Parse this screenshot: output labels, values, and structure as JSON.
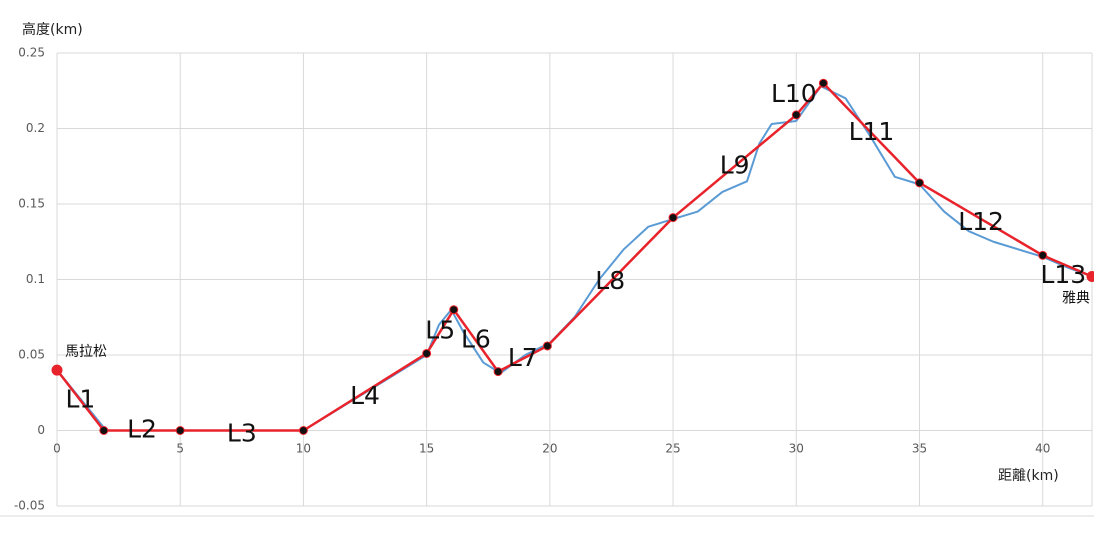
{
  "chart_data": {
    "type": "line",
    "y_label": "高度(km)",
    "x_label": "距離(km)",
    "xlim": [
      0,
      42
    ],
    "ylim": [
      -0.05,
      0.25
    ],
    "xticks": [
      0,
      5,
      10,
      15,
      20,
      25,
      30,
      35,
      40
    ],
    "yticks": [
      -0.05,
      0,
      0.05,
      0.1,
      0.15,
      0.2,
      0.25
    ],
    "grid": true,
    "series": [
      {
        "color": "#5b9bd5",
        "smooth": true,
        "x": [
          0,
          2,
          5,
          10,
          12,
          14.5,
          15,
          15.5,
          16,
          16.5,
          17.3,
          18,
          19,
          20,
          21,
          22,
          23,
          24,
          25,
          26,
          27,
          28,
          28.5,
          29,
          30,
          31,
          32,
          33,
          34,
          35,
          36,
          37,
          38,
          40,
          41,
          42
        ],
        "values": [
          0.04,
          0,
          0,
          0,
          0.02,
          0.045,
          0.05,
          0.07,
          0.08,
          0.065,
          0.045,
          0.038,
          0.05,
          0.058,
          0.075,
          0.1,
          0.12,
          0.135,
          0.14,
          0.145,
          0.158,
          0.165,
          0.19,
          0.203,
          0.205,
          0.228,
          0.22,
          0.195,
          0.168,
          0.163,
          0.145,
          0.132,
          0.125,
          0.115,
          0.108,
          0.102
        ]
      },
      {
        "color": "#e8232b",
        "markers": true,
        "x": [
          0,
          1.9,
          5,
          10,
          15,
          16.1,
          17.9,
          19.9,
          25,
          30,
          31.1,
          35,
          40,
          42
        ],
        "values": [
          0.04,
          0,
          0,
          0,
          0.051,
          0.08,
          0.039,
          0.056,
          0.141,
          0.209,
          0.23,
          0.164,
          0.116,
          0.102
        ]
      }
    ],
    "segment_labels": [
      "L1",
      "L2",
      "L3",
      "L4",
      "L5",
      "L6",
      "L7",
      "L8",
      "L9",
      "L10",
      "L11",
      "L12",
      "L13"
    ],
    "start_label": "馬拉松",
    "end_label": "雅典"
  }
}
